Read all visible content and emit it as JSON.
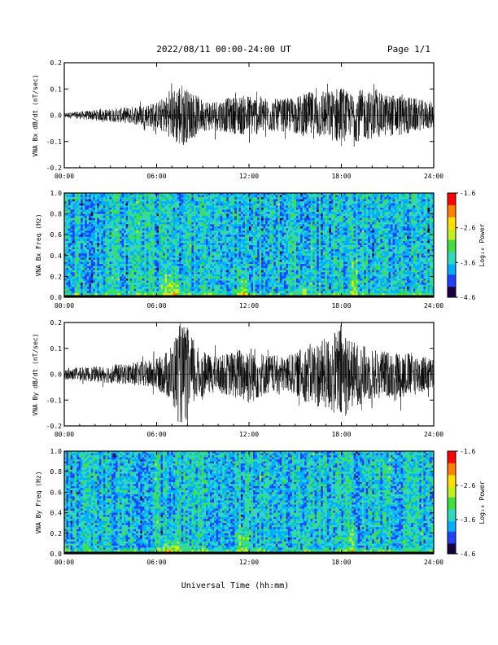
{
  "header": {
    "title": "2022/08/11  00:00-24:00 UT",
    "page": "Page 1/1"
  },
  "footer": {
    "xlabel": "Universal Time (hh:mm)"
  },
  "colors": {
    "waveform": "#000000",
    "colorscale": [
      "#1a0040",
      "#2040ff",
      "#00b0ff",
      "#30d8c0",
      "#40e040",
      "#c0f020",
      "#ffe000",
      "#ff8000",
      "#ff0000"
    ]
  },
  "chart_data": [
    {
      "type": "line",
      "ylabel": "VNA Bx dB/dt (nT/sec)",
      "xlim": [
        "00:00",
        "24:00"
      ],
      "ylim": [
        -0.2,
        0.2
      ],
      "yticks": [
        "0.2",
        "0.1",
        "0.0",
        "-0.1",
        "-0.2"
      ],
      "xticks": [
        "00:00",
        "06:00",
        "12:00",
        "18:00",
        "24:00"
      ],
      "series": [
        {
          "x_hours": [
            0,
            2,
            4,
            6,
            6.5,
            7,
            7.5,
            8,
            8.5,
            9,
            10,
            11,
            12,
            13,
            14,
            15,
            16,
            17,
            17.5,
            18,
            18.5,
            19,
            20,
            21,
            22,
            23,
            24
          ],
          "envelope": [
            0.01,
            0.02,
            0.03,
            0.05,
            0.07,
            0.09,
            0.13,
            0.1,
            0.08,
            0.06,
            0.06,
            0.07,
            0.08,
            0.07,
            0.06,
            0.07,
            0.09,
            0.09,
            0.1,
            0.12,
            0.08,
            0.1,
            0.09,
            0.08,
            0.08,
            0.06,
            0.05
          ]
        }
      ]
    },
    {
      "type": "heatmap",
      "ylabel": "VNA Bx Freq (Hz)",
      "xlim": [
        "00:00",
        "24:00"
      ],
      "ylim": [
        0.0,
        1.0
      ],
      "yticks": [
        "1.0",
        "0.8",
        "0.6",
        "0.4",
        "0.2",
        "0.0"
      ],
      "xticks": [
        "00:00",
        "06:00",
        "12:00",
        "18:00",
        "24:00"
      ],
      "colorbar": {
        "label": "Log₁₀ Power",
        "ticks": [
          "-1.6",
          "-2.6",
          "-3.6",
          "-4.6"
        ],
        "range": [
          -4.6,
          -1.6
        ]
      },
      "features": [
        {
          "x_hour": 7.0,
          "width_hours": 1.8,
          "top_freq": 0.3
        },
        {
          "x_hour": 11.6,
          "width_hours": 0.8,
          "top_freq": 0.35
        },
        {
          "x_hour": 15.6,
          "width_hours": 0.4,
          "top_freq": 0.3
        },
        {
          "x_hour": 18.8,
          "width_hours": 0.5,
          "top_freq": 0.5
        }
      ]
    },
    {
      "type": "line",
      "ylabel": "VNA By dB/dt (nT/sec)",
      "xlim": [
        "00:00",
        "24:00"
      ],
      "ylim": [
        -0.2,
        0.2
      ],
      "yticks": [
        "0.2",
        "0.1",
        "0.0",
        "-0.1",
        "-0.2"
      ],
      "xticks": [
        "00:00",
        "06:00",
        "12:00",
        "18:00",
        "24:00"
      ],
      "series": [
        {
          "x_hours": [
            0,
            2,
            4,
            6,
            6.5,
            7,
            7.5,
            8,
            8.5,
            9,
            10,
            11,
            12,
            13,
            14,
            15,
            16,
            17,
            17.5,
            18,
            18.5,
            19,
            20,
            21,
            22,
            23,
            24
          ],
          "envelope": [
            0.02,
            0.03,
            0.04,
            0.06,
            0.08,
            0.12,
            0.2,
            0.18,
            0.12,
            0.08,
            0.07,
            0.09,
            0.12,
            0.08,
            0.07,
            0.08,
            0.12,
            0.14,
            0.16,
            0.2,
            0.14,
            0.12,
            0.1,
            0.09,
            0.09,
            0.08,
            0.06
          ]
        }
      ]
    },
    {
      "type": "heatmap",
      "ylabel": "VNA By Freq (Hz)",
      "xlim": [
        "00:00",
        "24:00"
      ],
      "ylim": [
        0.0,
        1.0
      ],
      "yticks": [
        "1.0",
        "0.8",
        "0.6",
        "0.4",
        "0.2",
        "0.0"
      ],
      "xticks": [
        "00:00",
        "06:00",
        "12:00",
        "18:00",
        "24:00"
      ],
      "colorbar": {
        "label": "Log₁₀ Power",
        "ticks": [
          "-1.6",
          "-2.6",
          "-3.6",
          "-4.6"
        ],
        "range": [
          -4.6,
          -1.6
        ]
      },
      "features": [
        {
          "x_hour": 7.0,
          "width_hours": 1.8,
          "top_freq": 0.2
        },
        {
          "x_hour": 11.6,
          "width_hours": 0.8,
          "top_freq": 0.35
        },
        {
          "x_hour": 15.6,
          "width_hours": 0.4,
          "top_freq": 0.3
        },
        {
          "x_hour": 18.8,
          "width_hours": 0.5,
          "top_freq": 0.4
        }
      ]
    }
  ]
}
